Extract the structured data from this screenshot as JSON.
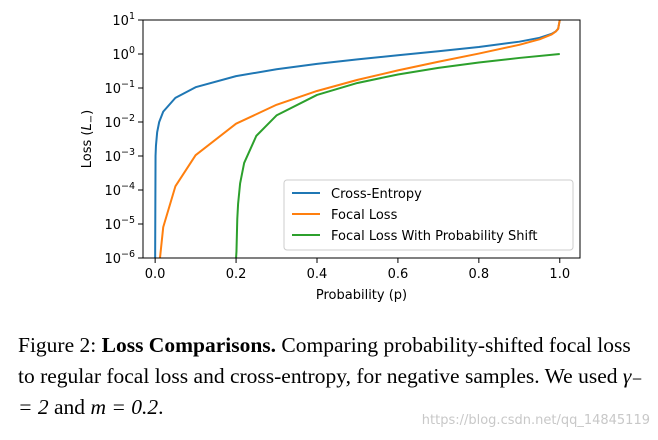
{
  "chart_data": {
    "type": "line",
    "title": "",
    "xlabel": "Probability (p)",
    "ylabel": "Loss (L_)",
    "xlim": [
      -0.03,
      1.05
    ],
    "ylim_log10": [
      -6,
      1
    ],
    "y_scale": "log",
    "x_ticks": [
      "0.0",
      "0.2",
      "0.4",
      "0.6",
      "0.8",
      "1.0"
    ],
    "x_tick_values": [
      0.0,
      0.2,
      0.4,
      0.6,
      0.8,
      1.0
    ],
    "y_tick_exponents": [
      1,
      0,
      -1,
      -2,
      -3,
      -4,
      -5,
      -6
    ],
    "y_tick_base": "10",
    "grid": false,
    "legend_position": "lower-right",
    "series": [
      {
        "name": "Cross-Entropy",
        "color": "#1f77b4",
        "x": [
          0.0,
          0.001,
          0.002,
          0.005,
          0.01,
          0.02,
          0.05,
          0.1,
          0.2,
          0.3,
          0.4,
          0.5,
          0.6,
          0.7,
          0.8,
          0.9,
          0.95,
          0.98,
          0.99,
          0.996,
          1.0
        ],
        "y": [
          1e-06,
          0.001,
          0.002,
          0.005,
          0.01,
          0.0202,
          0.0513,
          0.1054,
          0.2231,
          0.3567,
          0.5108,
          0.6931,
          0.9163,
          1.204,
          1.609,
          2.303,
          2.996,
          3.912,
          4.605,
          5.52,
          10
        ]
      },
      {
        "name": "Focal Loss",
        "color": "#ff7f0e",
        "x": [
          0.012,
          0.02,
          0.05,
          0.1,
          0.2,
          0.3,
          0.4,
          0.5,
          0.6,
          0.7,
          0.8,
          0.9,
          0.95,
          0.98,
          0.99,
          0.996,
          1.0
        ],
        "y": [
          1e-06,
          8.08e-06,
          0.000128,
          0.001054,
          0.008926,
          0.0321,
          0.08173,
          0.1733,
          0.3299,
          0.59,
          1.03,
          1.865,
          2.704,
          3.757,
          4.559,
          5.5,
          10
        ]
      },
      {
        "name": "Focal Loss With Probability Shift",
        "color": "#2ca02c",
        "x": [
          0.2,
          0.201,
          0.203,
          0.205,
          0.21,
          0.22,
          0.25,
          0.3,
          0.4,
          0.5,
          0.6,
          0.7,
          0.8,
          0.9,
          1.0
        ],
        "y": [
          1e-06,
          1.56e-06,
          1.41e-05,
          3.91e-05,
          0.000156,
          0.000625,
          0.003906,
          0.01563,
          0.0625,
          0.1406,
          0.25,
          0.3906,
          0.5625,
          0.7656,
          1.0
        ]
      }
    ]
  },
  "caption": {
    "prefix": "Figure 2: ",
    "bold": "Loss Comparisons.",
    "text_before_math": "  Comparing probability-shifted focal loss to regular focal loss and cross-entropy, for negative samples. We used ",
    "math1": "γ₋ = 2",
    "and": " and ",
    "math2": "m = 0.2",
    "end": "."
  },
  "watermark": "https://blog.csdn.net/qq_14845119"
}
